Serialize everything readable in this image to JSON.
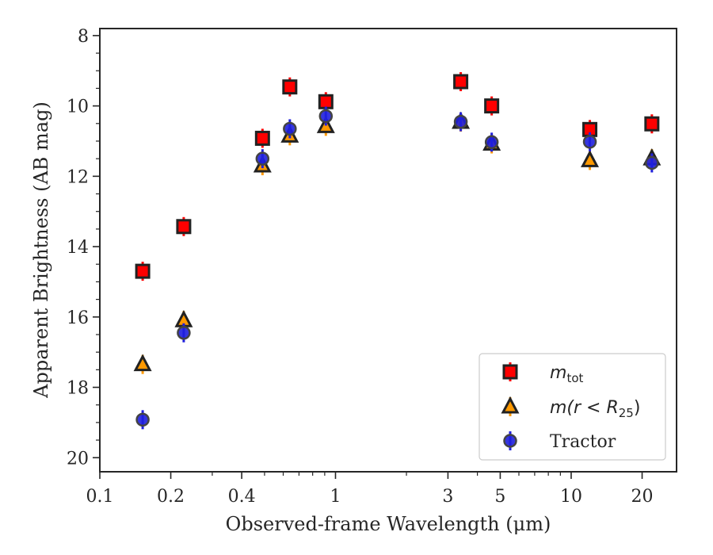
{
  "chart_data": {
    "type": "scatter",
    "title": "",
    "xlabel": "Observed-frame Wavelength (μm)",
    "ylabel": "Apparent Brightness (AB mag)",
    "x_scale": "log",
    "xlim": [
      0.1,
      28
    ],
    "ylim": [
      20.4,
      7.8
    ],
    "y_inverted": true,
    "x_ticks": [
      0.1,
      0.2,
      0.4,
      1,
      3,
      5,
      10,
      20
    ],
    "x_tick_labels": [
      "0.1",
      "0.2",
      "0.4",
      "1",
      "3",
      "5",
      "10",
      "20"
    ],
    "y_ticks": [
      8,
      10,
      12,
      14,
      16,
      18,
      20
    ],
    "y_tick_labels": [
      "8",
      "10",
      "12",
      "14",
      "16",
      "18",
      "20"
    ],
    "grid": false,
    "legend_position": "bottom-right",
    "series": [
      {
        "name": "m_tot",
        "label_main": "m",
        "label_sub": "tot",
        "marker": "square",
        "fill": "#ff0000",
        "edge": "#222222",
        "errorbar_color": "#ff0000",
        "x": [
          0.152,
          0.227,
          0.49,
          0.64,
          0.91,
          3.4,
          4.6,
          12.0,
          22.0
        ],
        "y": [
          14.7,
          13.43,
          10.92,
          9.46,
          9.88,
          9.31,
          10.0,
          10.67,
          10.51
        ]
      },
      {
        "name": "m(r < R_25)",
        "label_main": "m(r < R",
        "label_sub": "25",
        "label_tail": ")",
        "marker": "triangle",
        "fill": "#ff9900",
        "edge": "#222222",
        "errorbar_color": "#ff9900",
        "x": [
          0.152,
          0.227,
          0.49,
          0.64,
          0.91,
          3.4,
          4.6,
          12.0,
          22.0
        ],
        "y": [
          17.35,
          16.1,
          11.7,
          10.85,
          10.58,
          10.46,
          11.08,
          11.55,
          11.5
        ]
      },
      {
        "name": "Tractor",
        "label_main": "Tractor",
        "marker": "circle",
        "fill": "#1f1fdd",
        "edge": "#444444",
        "errorbar_color": "#1f1fdd",
        "x": [
          0.152,
          0.227,
          0.49,
          0.64,
          0.91,
          3.4,
          4.6,
          12.0,
          22.0
        ],
        "y": [
          18.92,
          16.45,
          11.5,
          10.65,
          10.29,
          10.45,
          11.03,
          11.02,
          11.62
        ]
      }
    ]
  }
}
